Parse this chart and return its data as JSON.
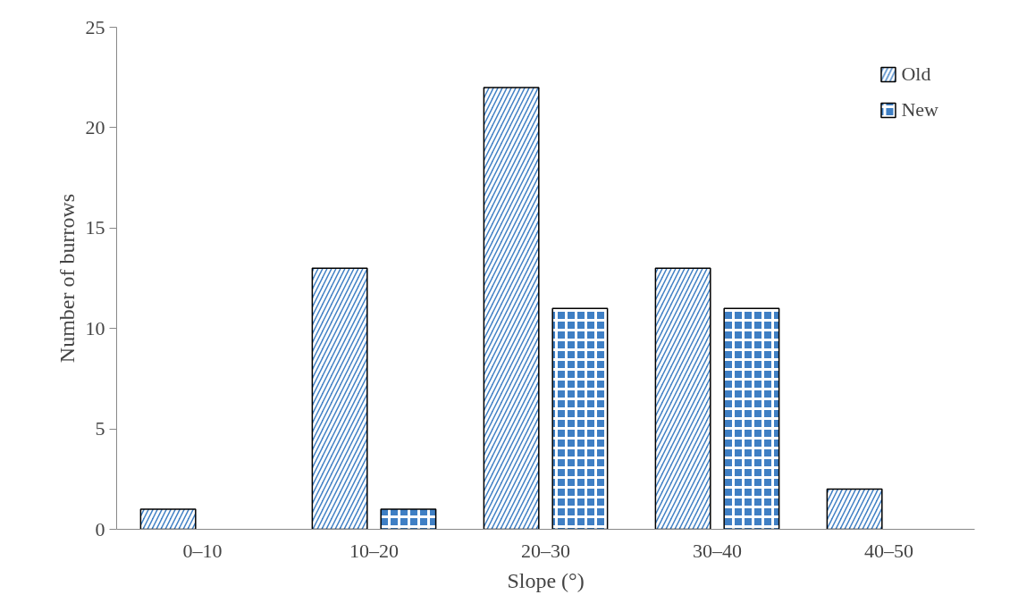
{
  "chart_data": {
    "type": "bar",
    "xlabel": "Slope (°)",
    "ylabel": "Number of burrows",
    "categories": [
      "0–10",
      "10–20",
      "20–30",
      "30–40",
      "40–50"
    ],
    "series": [
      {
        "name": "Old",
        "color": "#3f7fc4",
        "values": [
          1,
          13,
          22,
          13,
          2
        ]
      },
      {
        "name": "New",
        "color": "#3f7fc4",
        "values": [
          null,
          1,
          11,
          11,
          null
        ]
      }
    ],
    "ylim": [
      0,
      25
    ],
    "yticks": [
      0,
      5,
      10,
      15,
      20,
      25
    ],
    "grid": false,
    "legend": "top right"
  }
}
